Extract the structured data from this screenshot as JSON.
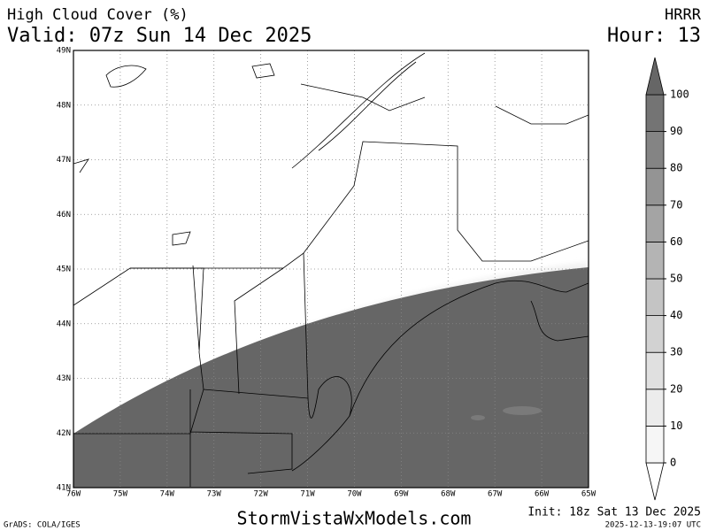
{
  "header": {
    "title": "High Cloud Cover (%)",
    "valid": "Valid: 07z Sun 14 Dec 2025",
    "model": "HRRR",
    "hour": "Hour: 13"
  },
  "map": {
    "lat_labels": [
      "49N",
      "48N",
      "47N",
      "46N",
      "45N",
      "44N",
      "43N",
      "42N",
      "41N"
    ],
    "lon_labels": [
      "76W",
      "75W",
      "74W",
      "73W",
      "72W",
      "71W",
      "70W",
      "69W",
      "68W",
      "67W",
      "66W",
      "65W"
    ]
  },
  "colorbar": {
    "levels": [
      0,
      10,
      20,
      30,
      40,
      50,
      60,
      70,
      80,
      90,
      100
    ],
    "colors": [
      "#ffffff",
      "#f6f6f6",
      "#ececec",
      "#e0e0e0",
      "#d2d2d2",
      "#c4c4c4",
      "#b4b4b4",
      "#a4a4a4",
      "#949494",
      "#848484",
      "#747474",
      "#666666"
    ]
  },
  "footer": {
    "site": "StormVistaWxModels.com",
    "init": "Init: 18z Sat 13 Dec 2025",
    "credit": "GrADS: COLA/IGES",
    "timestamp": "2025-12-13-19:07 UTC"
  }
}
